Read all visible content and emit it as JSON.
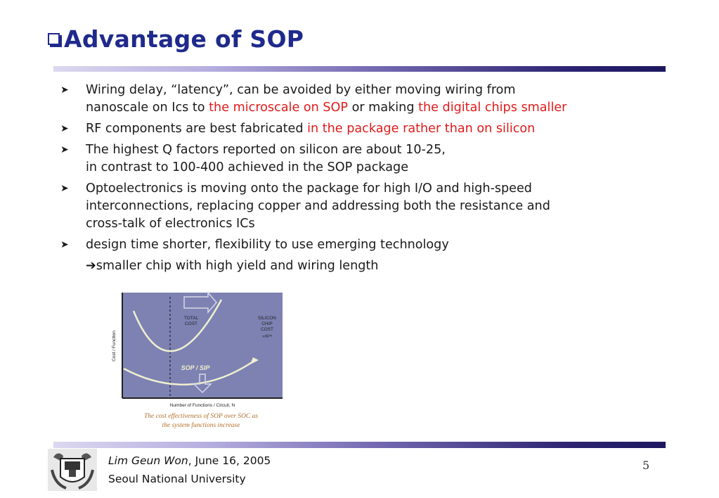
{
  "slide": {
    "title": "Advantage of SOP"
  },
  "bullets": [
    {
      "line1": "Wiring delay, “latency”, can be avoided by either moving wiring from",
      "line2_pre": "nanoscale on Ics to ",
      "line2_red1": "the microscale on SOP",
      "line2_mid": " or making ",
      "line2_red2": "the digital chips smaller"
    },
    {
      "text_pre": "RF components are best fabricated ",
      "text_red": "in the package rather than on silicon"
    },
    {
      "line1": "The highest Q factors reported on silicon are about 10-25,",
      "line2": "in contrast to 100-400 achieved in the SOP package"
    },
    {
      "line1": "Optoelectronics is moving onto the package for high I/O and high-speed",
      "line2": "interconnections, replacing copper and addressing both the resistance and",
      "line3": "cross-talk of electronics ICs"
    },
    {
      "text": "design time shorter, flexibility to use emerging technology"
    }
  ],
  "followup": {
    "arrow": "➔",
    "text": "smaller chip with high yield and wiring length"
  },
  "figure": {
    "y_label": "Cost / Function",
    "x_label": "Number of Functions / Circuit, N",
    "total_cost_label": [
      "TOTAL",
      "COST"
    ],
    "silicon_label": [
      "SILICON",
      "CHIP",
      "COST"
    ],
    "silicon_sub": "∝N²ᵐ",
    "sop_label": "SOP / SIP",
    "caption_line1": "The cost effectiveness of SOP over SOC as",
    "caption_line2": "the system functions increase",
    "colors": {
      "plot_bg": "#7d82b3",
      "curve": "#f0efcf",
      "caption": "#b0702a"
    }
  },
  "footer": {
    "author": "Lim Geun Won",
    "date": ", June 16, 2005",
    "affiliation": "Seoul National University",
    "page_number": "5"
  },
  "colors": {
    "title": "#1f2a8c",
    "highlight": "#e01b1b"
  }
}
